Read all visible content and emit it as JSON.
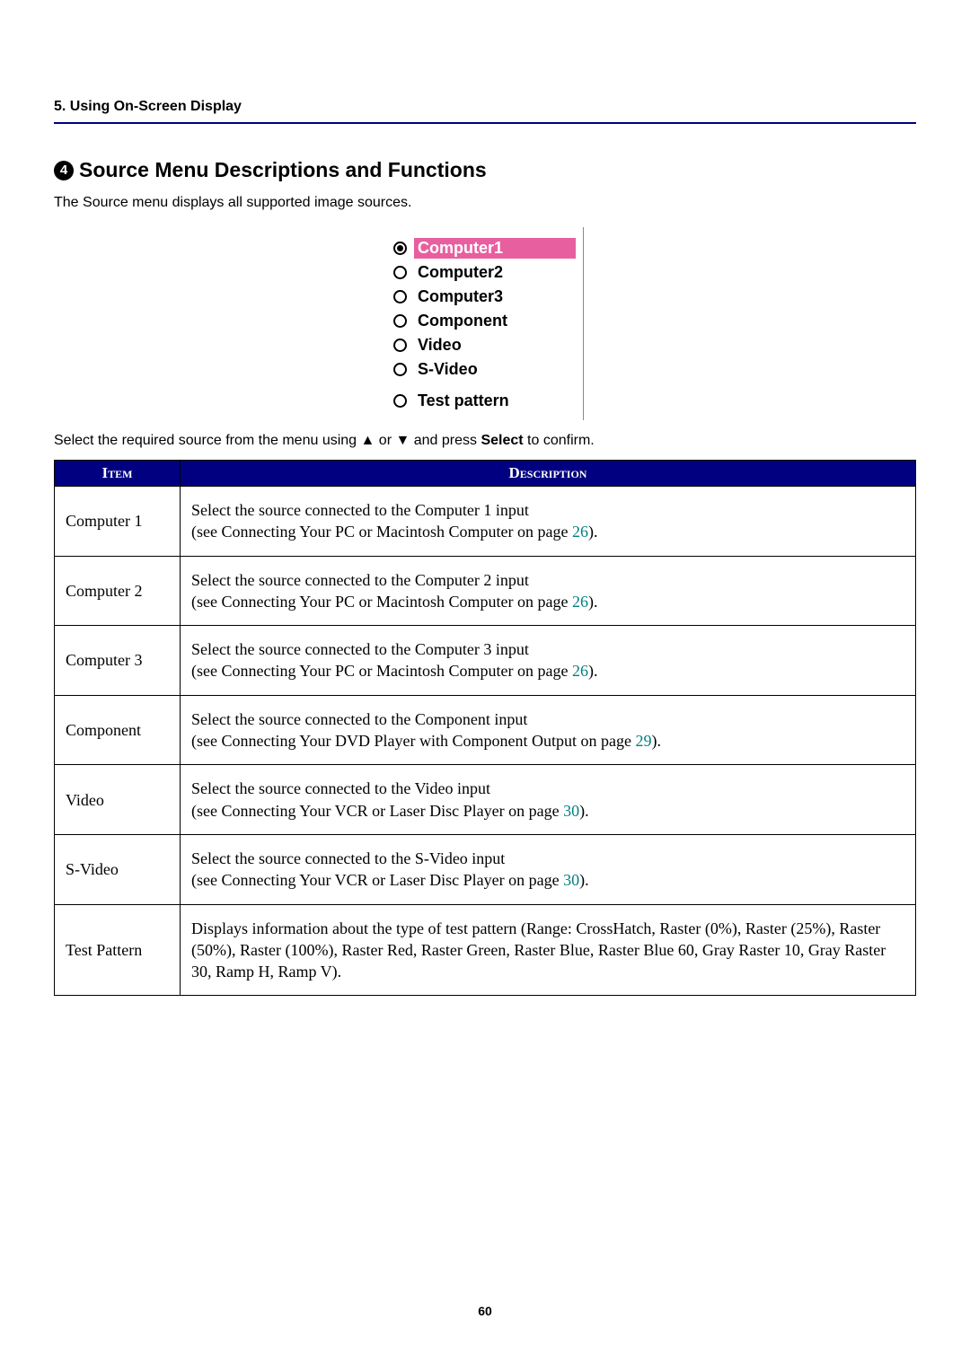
{
  "chapter_header": "5. Using On-Screen Display",
  "section": {
    "number": "4",
    "title": "Source Menu Descriptions and Functions"
  },
  "intro": "The Source menu displays all supported image sources.",
  "menu_items": [
    {
      "label": "Computer1",
      "selected": true
    },
    {
      "label": "Computer2",
      "selected": false
    },
    {
      "label": "Computer3",
      "selected": false
    },
    {
      "label": "Component",
      "selected": false
    },
    {
      "label": "Video",
      "selected": false
    },
    {
      "label": "S-Video",
      "selected": false
    },
    {
      "label": "Test pattern",
      "selected": false,
      "spaced": true
    }
  ],
  "instruction": {
    "pre": "Select the required source from the menu using ▲ or ▼ and press ",
    "bold": "Select",
    "post": " to confirm."
  },
  "table": {
    "header_item": "Item",
    "header_desc": "Description",
    "rows": [
      {
        "item": "Computer 1",
        "line1": "Select the source connected to the Computer 1 input",
        "line2_pre": "(see Connecting Your PC or Macintosh Computer on page ",
        "page": "26",
        "line2_post": ")."
      },
      {
        "item": "Computer 2",
        "line1": "Select the source connected to the Computer 2 input",
        "line2_pre": "(see Connecting Your PC or Macintosh Computer on page ",
        "page": "26",
        "line2_post": ")."
      },
      {
        "item": "Computer 3",
        "line1": "Select the source connected to the Computer 3 input",
        "line2_pre": "(see Connecting Your PC or Macintosh Computer on page ",
        "page": "26",
        "line2_post": ")."
      },
      {
        "item": "Component",
        "line1": "Select the source connected to the Component input",
        "line2_pre": "(see Connecting Your DVD Player with Component Output on page ",
        "page": "29",
        "line2_post": ")."
      },
      {
        "item": "Video",
        "line1": "Select the source connected to the Video input",
        "line2_pre": "(see Connecting Your VCR or Laser Disc Player on page ",
        "page": "30",
        "line2_post": ")."
      },
      {
        "item": "S-Video",
        "line1": "Select the source connected to the S-Video input",
        "line2_pre": "(see Connecting Your VCR or Laser Disc Player on page ",
        "page": "30",
        "line2_post": ")."
      },
      {
        "item": "Test Pattern",
        "full": "Displays information about the type of test pattern (Range: CrossHatch, Raster (0%), Raster (25%), Raster (50%), Raster (100%), Raster Red, Raster Green, Raster Blue, Raster Blue 60, Gray Raster 10, Gray Raster 30, Ramp H, Ramp V)."
      }
    ]
  },
  "page_number": "60",
  "colors": {
    "header_bg": "#000080",
    "header_fg": "#ffffff",
    "link": "#008080",
    "highlight_bg": "#e85fa0",
    "highlight_fg": "#ffffff"
  }
}
